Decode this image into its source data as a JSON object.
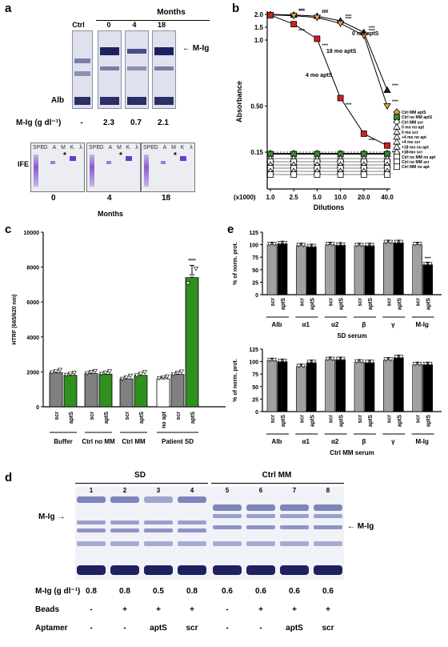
{
  "panels": {
    "a": {
      "label": "a",
      "header": "Months",
      "lanes": [
        "Ctrl",
        "0",
        "4",
        "18"
      ],
      "band_m": "M-Ig",
      "band_alb": "Alb",
      "mig_label": "M-Ig (g dl⁻¹)",
      "mig_values": [
        "-",
        "2.3",
        "0.7",
        "2.1"
      ],
      "ife_label": "IFE",
      "ife_lanes": [
        "SPE",
        "G",
        "A",
        "M",
        "K",
        "λ"
      ],
      "ife_months": [
        "0",
        "4",
        "18"
      ],
      "ife_axis": "Months"
    },
    "b": {
      "label": "b"
    },
    "c": {
      "label": "c"
    },
    "d": {
      "label": "d",
      "group_sd": "SD",
      "group_ctrl": "Ctrl MM",
      "lanes": [
        "1",
        "2",
        "3",
        "4",
        "5",
        "6",
        "7",
        "8"
      ],
      "band_left": "M-Ig",
      "band_right": "M-Ig",
      "mig_label": "M-Ig (g dl⁻¹)",
      "mig_values": [
        "0.8",
        "0.8",
        "0.5",
        "0.8",
        "0.6",
        "0.6",
        "0.6",
        "0.6"
      ],
      "beads_label": "Beads",
      "beads": [
        "-",
        "+",
        "+",
        "+",
        "-",
        "+",
        "+",
        "+"
      ],
      "aptamer_label": "Aptamer",
      "aptamer": [
        "-",
        "-",
        "aptS",
        "scr",
        "-",
        "-",
        "aptS",
        "scr"
      ]
    },
    "e": {
      "label": "e"
    }
  },
  "chart_data": [
    {
      "id": "b",
      "type": "line",
      "xlabel": "Dilutions",
      "x_prefix": "(x1000)",
      "ylabel": "Absorbance",
      "categories": [
        "1.0",
        "2.5",
        "5.0",
        "10.0",
        "20.0",
        "40.0"
      ],
      "y_ticks": [
        "2.0",
        "1.5",
        "1.0",
        "0.50",
        "0.15"
      ],
      "curve_labels": [
        "0 mo aptS",
        "18 mo aptS",
        "4 mo aptS"
      ],
      "stars": "****",
      "series": [
        {
          "name": "0 mo aptS",
          "color": "#222222",
          "marker": "triangle",
          "values": [
            2.0,
            1.98,
            1.93,
            1.75,
            1.3,
            0.62
          ]
        },
        {
          "name": "18 mo aptS",
          "color": "#e8a23a",
          "marker": "triangle-down",
          "values": [
            1.98,
            1.95,
            1.88,
            1.65,
            1.18,
            0.5
          ]
        },
        {
          "name": "4 mo aptS",
          "color": "#d0211b",
          "marker": "square",
          "values": [
            1.97,
            1.62,
            1.05,
            0.56,
            0.29,
            0.2
          ]
        },
        {
          "name": "Ctrl MM aptS",
          "color": "#e8a23a",
          "marker": "diamond",
          "values": [
            0.14,
            0.14,
            0.14,
            0.14,
            0.14,
            0.14
          ]
        },
        {
          "name": "Ctrl no MM aptS",
          "color": "#3a8a2e",
          "marker": "square",
          "values": [
            0.135,
            0.135,
            0.135,
            0.135,
            0.135,
            0.135
          ]
        }
      ],
      "legend": [
        {
          "label": "Ctrl MM aptS",
          "color": "#e8a23a",
          "marker": "diamond"
        },
        {
          "label": "Ctrl no MM aptS",
          "color": "#3a8a2e",
          "marker": "square"
        },
        {
          "label": "Ctrl MM scr",
          "color": "#ffffff",
          "marker": "diamond"
        },
        {
          "label": "0 mo no apt",
          "color": "#ffffff",
          "marker": "triangle"
        },
        {
          "label": "0 mo scr",
          "color": "#ffffff",
          "marker": "triangle"
        },
        {
          "label": "+4 mo no apt",
          "color": "#ffffff",
          "marker": "triangle"
        },
        {
          "label": "+4 mo scr",
          "color": "#ffffff",
          "marker": "triangle"
        },
        {
          "label": "+18 mo no apt",
          "color": "#ffffff",
          "marker": "triangle"
        },
        {
          "label": "+18 mo scr",
          "color": "#ffffff",
          "marker": "triangle"
        },
        {
          "label": "Ctrl no MM no apt",
          "color": "#ffffff",
          "marker": "square"
        },
        {
          "label": "Ctrl no MM scr",
          "color": "#ffffff",
          "marker": "square"
        },
        {
          "label": "Ctrl MM no apt",
          "color": "#ffffff",
          "marker": "square"
        }
      ]
    },
    {
      "id": "c",
      "type": "bar",
      "ylabel": "HTRF (665/620 nm)",
      "ylim": [
        0,
        10000
      ],
      "y_ticks": [
        "0",
        "2000",
        "4000",
        "6000",
        "8000",
        "10000"
      ],
      "bars": [
        {
          "label": "scr",
          "group": "Buffer",
          "value": 1950,
          "err": 120,
          "color": "#808080"
        },
        {
          "label": "aptS",
          "group": "Buffer",
          "value": 1800,
          "err": 100,
          "color": "#2f8f1f"
        },
        {
          "label": "scr",
          "group": "Ctrl no MM",
          "value": 1900,
          "err": 110,
          "color": "#808080"
        },
        {
          "label": "aptS",
          "group": "Ctrl no MM",
          "value": 1870,
          "err": 120,
          "color": "#2f8f1f"
        },
        {
          "label": "scr",
          "group": "Ctrl MM",
          "value": 1600,
          "err": 150,
          "color": "#808080"
        },
        {
          "label": "aptS",
          "group": "Ctrl MM",
          "value": 1800,
          "err": 160,
          "color": "#2f8f1f"
        },
        {
          "label": "no apt",
          "group": "Patient SD",
          "value": 1600,
          "err": 80,
          "color": "#ffffff"
        },
        {
          "label": "scr",
          "group": "Patient SD",
          "value": 1850,
          "err": 130,
          "color": "#808080"
        },
        {
          "label": "aptS",
          "group": "Patient SD",
          "value": 7400,
          "err": 700,
          "color": "#2f8f1f"
        }
      ],
      "groups": [
        "Buffer",
        "Ctrl no MM",
        "Ctrl MM",
        "Patient SD"
      ],
      "stars": "****"
    },
    {
      "id": "e-top",
      "type": "bar",
      "ylabel": "% of norm. prot.",
      "xlabel": "SD serum",
      "ylim": [
        0,
        125
      ],
      "y_ticks": [
        "0",
        "25",
        "50",
        "75",
        "100",
        "125"
      ],
      "groups": [
        "Alb",
        "α1",
        "α2",
        "β",
        "γ",
        "M-Ig"
      ],
      "bar_labels": [
        "scr",
        "aptS"
      ],
      "series": [
        {
          "name": "scr",
          "color": "#a0a0a0",
          "values": [
            100,
            98,
            100,
            98,
            104,
            100
          ]
        },
        {
          "name": "aptS",
          "color": "#000000",
          "values": [
            102,
            96,
            99,
            98,
            104,
            60
          ]
        }
      ],
      "stars": "****"
    },
    {
      "id": "e-bottom",
      "type": "bar",
      "ylabel": "% of norm. prot.",
      "xlabel": "Ctrl MM serum",
      "ylim": [
        0,
        125
      ],
      "y_ticks": [
        "0",
        "25",
        "50",
        "75",
        "100",
        "125"
      ],
      "groups": [
        "Alb",
        "α1",
        "α2",
        "β",
        "γ",
        "M-Ig"
      ],
      "bar_labels": [
        "scr",
        "aptS"
      ],
      "series": [
        {
          "name": "scr",
          "color": "#a0a0a0",
          "values": [
            102,
            90,
            104,
            99,
            103,
            94
          ]
        },
        {
          "name": "aptS",
          "color": "#000000",
          "values": [
            100,
            98,
            104,
            98,
            108,
            94
          ]
        }
      ]
    }
  ]
}
